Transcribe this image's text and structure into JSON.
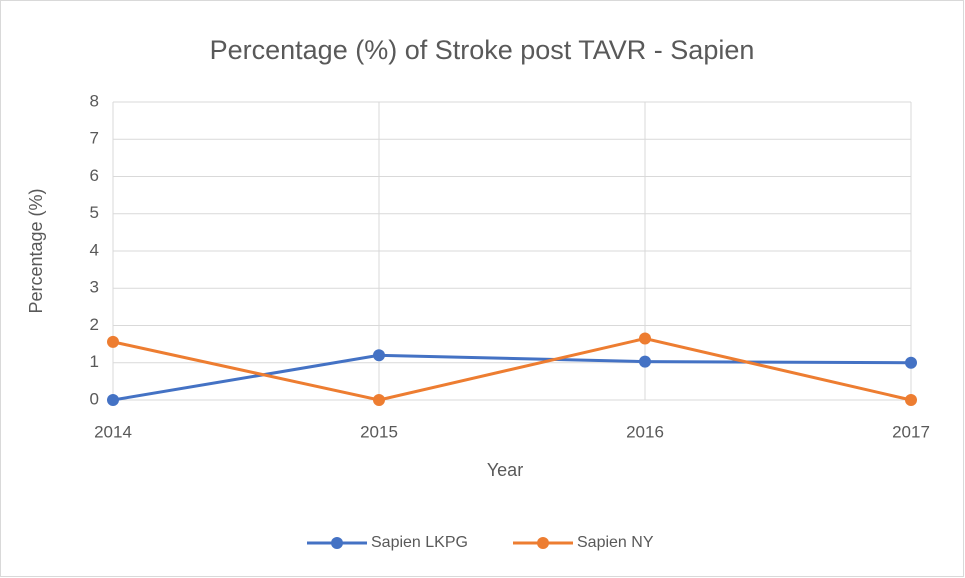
{
  "chart_data": {
    "type": "line",
    "title": "Percentage (%) of Stroke post TAVR - Sapien",
    "x_label": "Year",
    "y_label": "Percentage (%)",
    "x": [
      2014,
      2015,
      2016,
      2017
    ],
    "xlim": [
      2014,
      2017
    ],
    "xticks": [
      2014,
      2015,
      2016,
      2017
    ],
    "ylim": [
      0,
      8
    ],
    "yticks": [
      0,
      1,
      2,
      3,
      4,
      5,
      6,
      7,
      8
    ],
    "grid": true,
    "legend": "bottom",
    "series": [
      {
        "name": "Sapien LKPG",
        "color": "#4472c4",
        "values": [
          0,
          1.2,
          1.03,
          1.0
        ]
      },
      {
        "name": "Sapien NY",
        "color": "#ed7d31",
        "values": [
          1.56,
          0,
          1.65,
          0
        ]
      }
    ]
  }
}
